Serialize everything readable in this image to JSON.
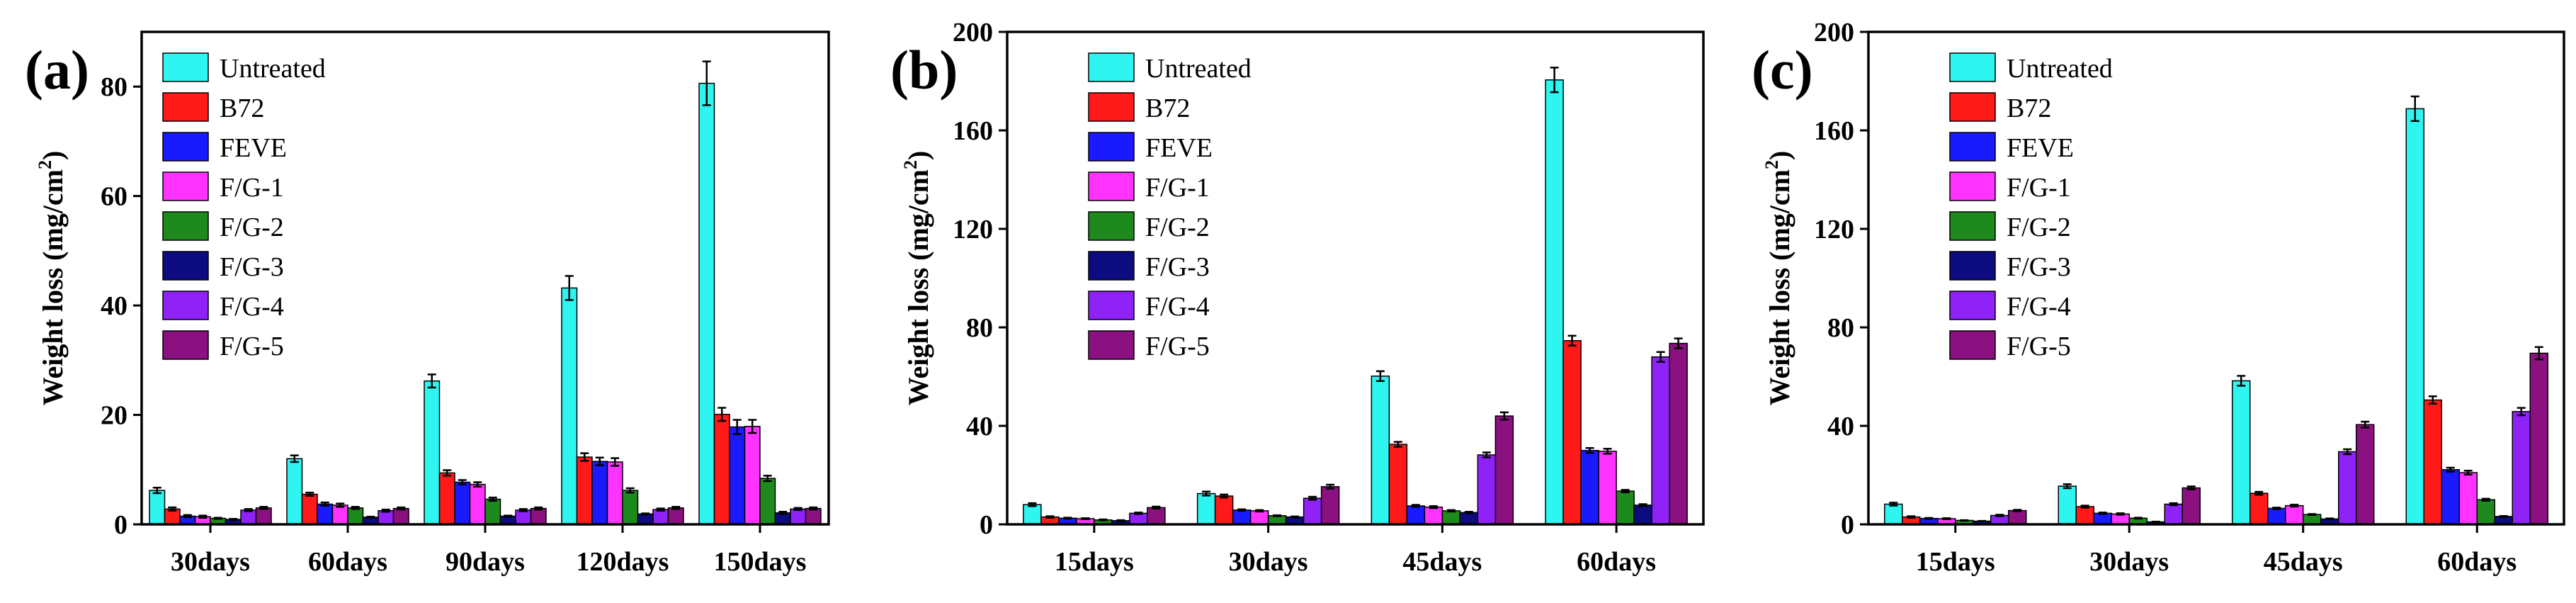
{
  "colors": {
    "Untreated": "#2ef5f0",
    "B72": "#ff1a1a",
    "FEVE": "#1a1aff",
    "F/G-1": "#ff33ff",
    "F/G-2": "#1e8a1e",
    "F/G-3": "#0c0c80",
    "F/G-4": "#8f23f7",
    "F/G-5": "#8a117f"
  },
  "chart_data": [
    {
      "type": "bar",
      "panel_label": "(a)",
      "title": "",
      "xlabel": "",
      "ylabel_main": "Weight loss (mg/cm",
      "ylabel_sup": "2",
      "ylabel_tail": ")",
      "ylim": [
        0,
        90
      ],
      "yticks": [
        0,
        20,
        40,
        60,
        80
      ],
      "legend": "top-left",
      "categories": [
        "30days",
        "60days",
        "90days",
        "120days",
        "150days"
      ],
      "series": [
        {
          "name": "Untreated",
          "values": [
            6.2,
            12.0,
            26.2,
            43.2,
            80.6
          ],
          "errors": [
            0.5,
            0.6,
            1.2,
            2.2,
            4.0
          ]
        },
        {
          "name": "B72",
          "values": [
            2.8,
            5.5,
            9.4,
            12.3,
            20.1
          ],
          "errors": [
            0.3,
            0.3,
            0.5,
            0.7,
            1.2
          ]
        },
        {
          "name": "FEVE",
          "values": [
            1.5,
            3.7,
            7.7,
            11.5,
            17.8
          ],
          "errors": [
            0.2,
            0.3,
            0.4,
            0.7,
            1.3
          ]
        },
        {
          "name": "F/G-1",
          "values": [
            1.4,
            3.5,
            7.3,
            11.4,
            17.9
          ],
          "errors": [
            0.2,
            0.3,
            0.4,
            0.7,
            1.2
          ]
        },
        {
          "name": "F/G-2",
          "values": [
            1.1,
            3.0,
            4.6,
            6.2,
            8.4
          ],
          "errors": [
            0.1,
            0.2,
            0.3,
            0.4,
            0.5
          ]
        },
        {
          "name": "F/G-3",
          "values": [
            0.9,
            1.3,
            1.5,
            1.9,
            2.1
          ],
          "errors": [
            0.1,
            0.1,
            0.1,
            0.1,
            0.2
          ]
        },
        {
          "name": "F/G-4",
          "values": [
            2.6,
            2.5,
            2.6,
            2.7,
            2.8
          ],
          "errors": [
            0.2,
            0.2,
            0.2,
            0.2,
            0.2
          ]
        },
        {
          "name": "F/G-5",
          "values": [
            3.0,
            2.9,
            2.9,
            3.0,
            2.9
          ],
          "errors": [
            0.2,
            0.2,
            0.2,
            0.2,
            0.2
          ]
        }
      ]
    },
    {
      "type": "bar",
      "panel_label": "(b)",
      "title": "",
      "xlabel": "",
      "ylabel_main": "Weight loss (mg/cm",
      "ylabel_sup": "2",
      "ylabel_tail": ")",
      "ylim": [
        0,
        200
      ],
      "yticks": [
        0,
        40,
        80,
        120,
        160,
        200
      ],
      "legend": "top-left",
      "categories": [
        "15days",
        "30days",
        "45days",
        "60days"
      ],
      "series": [
        {
          "name": "Untreated",
          "values": [
            8.0,
            12.5,
            60.2,
            180.5
          ],
          "errors": [
            0.6,
            0.8,
            2.0,
            5.0
          ]
        },
        {
          "name": "B72",
          "values": [
            3.0,
            11.5,
            32.5,
            74.6
          ],
          "errors": [
            0.3,
            0.6,
            1.0,
            2.0
          ]
        },
        {
          "name": "FEVE",
          "values": [
            2.5,
            5.8,
            7.5,
            30.0
          ],
          "errors": [
            0.2,
            0.3,
            0.4,
            1.0
          ]
        },
        {
          "name": "F/G-1",
          "values": [
            2.3,
            5.5,
            7.0,
            29.7
          ],
          "errors": [
            0.2,
            0.3,
            0.4,
            1.0
          ]
        },
        {
          "name": "F/G-2",
          "values": [
            1.8,
            3.5,
            5.5,
            13.5
          ],
          "errors": [
            0.2,
            0.2,
            0.3,
            0.5
          ]
        },
        {
          "name": "F/G-3",
          "values": [
            1.5,
            3.0,
            4.8,
            7.8
          ],
          "errors": [
            0.2,
            0.2,
            0.3,
            0.4
          ]
        },
        {
          "name": "F/G-4",
          "values": [
            4.5,
            10.6,
            28.2,
            68.0
          ],
          "errors": [
            0.3,
            0.6,
            1.0,
            2.0
          ]
        },
        {
          "name": "F/G-5",
          "values": [
            6.8,
            15.3,
            44.0,
            73.5
          ],
          "errors": [
            0.4,
            0.8,
            1.5,
            2.0
          ]
        }
      ]
    },
    {
      "type": "bar",
      "panel_label": "(c)",
      "title": "",
      "xlabel": "",
      "ylabel_main": "Weight loss (mg/cm",
      "ylabel_sup": "2",
      "ylabel_tail": ")",
      "ylim": [
        0,
        200
      ],
      "yticks": [
        0,
        40,
        80,
        120,
        160,
        200
      ],
      "legend": "top-left",
      "categories": [
        "15days",
        "30days",
        "45days",
        "60days"
      ],
      "series": [
        {
          "name": "Untreated",
          "values": [
            8.2,
            15.5,
            58.3,
            168.8
          ],
          "errors": [
            0.6,
            0.8,
            2.0,
            5.0
          ]
        },
        {
          "name": "B72",
          "values": [
            3.0,
            7.2,
            12.6,
            50.5
          ],
          "errors": [
            0.3,
            0.4,
            0.6,
            1.5
          ]
        },
        {
          "name": "FEVE",
          "values": [
            2.4,
            4.5,
            6.5,
            22.2
          ],
          "errors": [
            0.2,
            0.3,
            0.3,
            0.8
          ]
        },
        {
          "name": "F/G-1",
          "values": [
            2.3,
            4.2,
            7.6,
            21.0
          ],
          "errors": [
            0.2,
            0.3,
            0.4,
            0.8
          ]
        },
        {
          "name": "F/G-2",
          "values": [
            1.6,
            2.5,
            4.0,
            10.0
          ],
          "errors": [
            0.1,
            0.2,
            0.2,
            0.4
          ]
        },
        {
          "name": "F/G-3",
          "values": [
            1.3,
            1.0,
            2.2,
            3.2
          ],
          "errors": [
            0.1,
            0.1,
            0.2,
            0.2
          ]
        },
        {
          "name": "F/G-4",
          "values": [
            3.6,
            8.2,
            29.5,
            45.8
          ],
          "errors": [
            0.3,
            0.4,
            1.0,
            1.5
          ]
        },
        {
          "name": "F/G-5",
          "values": [
            5.6,
            14.8,
            40.5,
            69.5
          ],
          "errors": [
            0.3,
            0.6,
            1.2,
            2.5
          ]
        }
      ]
    }
  ]
}
